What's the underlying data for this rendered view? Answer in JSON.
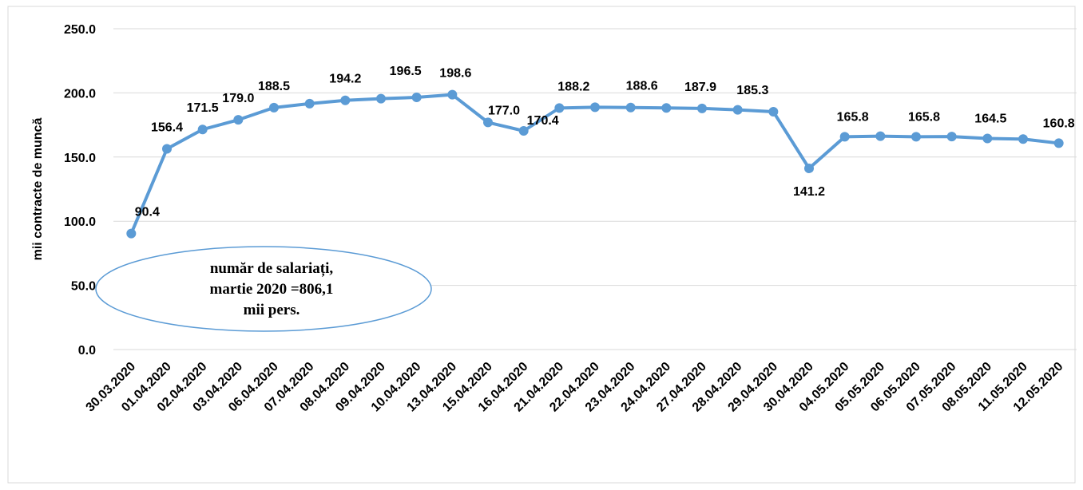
{
  "chart_data": {
    "type": "line",
    "y_label": "mii contracte de muncă",
    "categories": [
      "30.03.2020",
      "01.04.2020",
      "02.04.2020",
      "03.04.2020",
      "06.04.2020",
      "07.04.2020",
      "08.04.2020",
      "09.04.2020",
      "10.04.2020",
      "13.04.2020",
      "15.04.2020",
      "16.04.2020",
      "21.04.2020",
      "22.04.2020",
      "23.04.2020",
      "24.04.2020",
      "27.04.2020",
      "28.04.2020",
      "29.04.2020",
      "30.04.2020",
      "04.05.2020",
      "05.05.2020",
      "06.05.2020",
      "07.05.2020",
      "08.05.2020",
      "11.05.2020",
      "12.05.2020"
    ],
    "series": [
      {
        "name": "mii contracte de muncă",
        "color": "#5b9bd5",
        "values": [
          90.4,
          156.4,
          171.5,
          179.0,
          188.5,
          191.6,
          194.2,
          195.5,
          196.5,
          198.6,
          177.0,
          170.4,
          188.2,
          188.8,
          188.6,
          188.3,
          187.9,
          186.8,
          185.3,
          141.2,
          165.8,
          166.3,
          165.8,
          166.0,
          164.5,
          164.0,
          160.8
        ],
        "value_labels": [
          "90.4",
          "156.4",
          "171.5",
          "179.0",
          "188.5",
          null,
          "194.2",
          null,
          "196.5",
          "198.6",
          "177.0",
          "170.4",
          "188.2",
          null,
          "188.6",
          null,
          "187.9",
          null,
          "185.3",
          "141.2",
          "165.8",
          null,
          "165.8",
          null,
          "164.5",
          null,
          "160.8"
        ]
      }
    ],
    "ylim": [
      0,
      250
    ],
    "yticks": [
      {
        "value": 0,
        "label": "0.0"
      },
      {
        "value": 50,
        "label": "50.0"
      },
      {
        "value": 100,
        "label": "100.0"
      },
      {
        "value": 150,
        "label": "150.0"
      },
      {
        "value": 200,
        "label": "200.0"
      },
      {
        "value": 250,
        "label": "250.0"
      }
    ],
    "grid": true,
    "annotation": [
      "număr de salariați,",
      "martie 2020 =806,1",
      "mii pers."
    ]
  }
}
